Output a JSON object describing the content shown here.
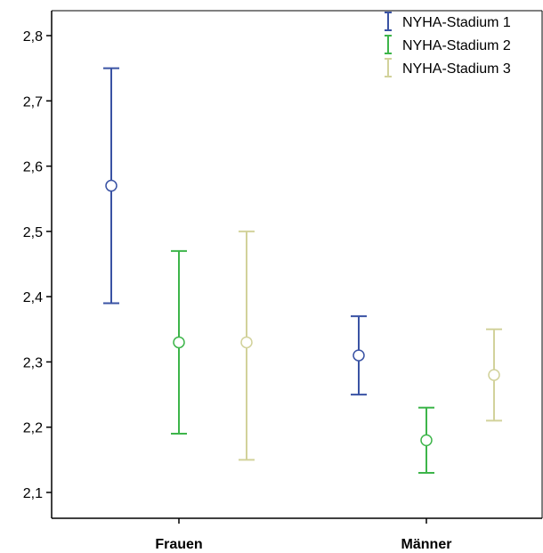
{
  "chart_data": {
    "type": "errorbar",
    "title": "",
    "xlabel": "",
    "ylabel": "",
    "categories": [
      "Frauen",
      "Männer"
    ],
    "ylim": [
      2.05,
      2.85
    ],
    "yticks": [
      2.1,
      2.2,
      2.3,
      2.4,
      2.5,
      2.6,
      2.7,
      2.8
    ],
    "ytick_labels": [
      "2,1",
      "2,2",
      "2,3",
      "2,4",
      "2,5",
      "2,6",
      "2,7",
      "2,8"
    ],
    "grid": false,
    "legend_position": "top-right",
    "series": [
      {
        "name": "NYHA-Stadium 1",
        "color": "#3a53a4",
        "mean": [
          2.57,
          2.31
        ],
        "lower": [
          2.39,
          2.25
        ],
        "upper": [
          2.75,
          2.37
        ]
      },
      {
        "name": "NYHA-Stadium 2",
        "color": "#3db54a",
        "mean": [
          2.33,
          2.18
        ],
        "lower": [
          2.19,
          2.13
        ],
        "upper": [
          2.47,
          2.23
        ]
      },
      {
        "name": "NYHA-Stadium 3",
        "color": "#d2d29b",
        "mean": [
          2.33,
          2.28
        ],
        "lower": [
          2.15,
          2.21
        ],
        "upper": [
          2.5,
          2.35
        ]
      }
    ]
  }
}
